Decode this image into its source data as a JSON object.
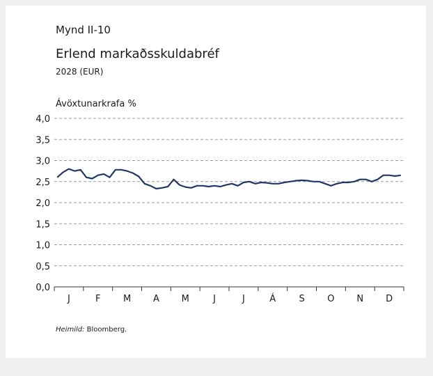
{
  "chart_data": {
    "type": "line",
    "figure_label": "Mynd II-10",
    "title": "Erlend markaðsskuldabréf",
    "subtitle": "2028 (EUR)",
    "y_label": "Ávöxtunarkrafa %",
    "source_label": "Heimild:",
    "source": "Bloomberg.",
    "categories": [
      null,
      null,
      "J",
      null,
      null,
      null,
      null,
      "F",
      null,
      null,
      null,
      null,
      "M",
      null,
      null,
      null,
      null,
      "A",
      null,
      null,
      null,
      null,
      "M",
      null,
      null,
      null,
      null,
      "J",
      null,
      null,
      null,
      null,
      "J",
      null,
      null,
      null,
      null,
      "Á",
      null,
      null,
      null,
      null,
      "S",
      null,
      null,
      null,
      null,
      "O",
      null,
      null,
      null,
      null,
      "N",
      null,
      null,
      null,
      null,
      "D",
      null,
      null
    ],
    "series": [
      {
        "name": null,
        "color": "#1f3864",
        "values": [
          2.6,
          2.72,
          2.8,
          2.75,
          2.78,
          2.6,
          2.57,
          2.65,
          2.68,
          2.6,
          2.78,
          2.78,
          2.75,
          2.7,
          2.62,
          2.45,
          2.4,
          2.33,
          2.35,
          2.38,
          2.55,
          2.42,
          2.37,
          2.35,
          2.4,
          2.4,
          2.38,
          2.4,
          2.38,
          2.42,
          2.45,
          2.4,
          2.48,
          2.5,
          2.45,
          2.48,
          2.47,
          2.45,
          2.45,
          2.48,
          2.5,
          2.52,
          2.53,
          2.52,
          2.5,
          2.5,
          2.45,
          2.4,
          2.45,
          2.48,
          2.48,
          2.5,
          2.55,
          2.55,
          2.5,
          2.55,
          2.65,
          2.65,
          2.63,
          2.65
        ]
      }
    ],
    "ylim": [
      0,
      4
    ],
    "yticks": [
      {
        "value": 0,
        "label": "0,0"
      },
      {
        "value": 0.5,
        "label": "0,5"
      },
      {
        "value": 1,
        "label": "1,0"
      },
      {
        "value": 1.5,
        "label": "1,5"
      },
      {
        "value": 2,
        "label": "2,0"
      },
      {
        "value": 2.5,
        "label": "2,5"
      },
      {
        "value": 3,
        "label": "3,0"
      },
      {
        "value": 3.5,
        "label": "3,5"
      },
      {
        "value": 4,
        "label": "4,0"
      }
    ],
    "grid": true
  }
}
